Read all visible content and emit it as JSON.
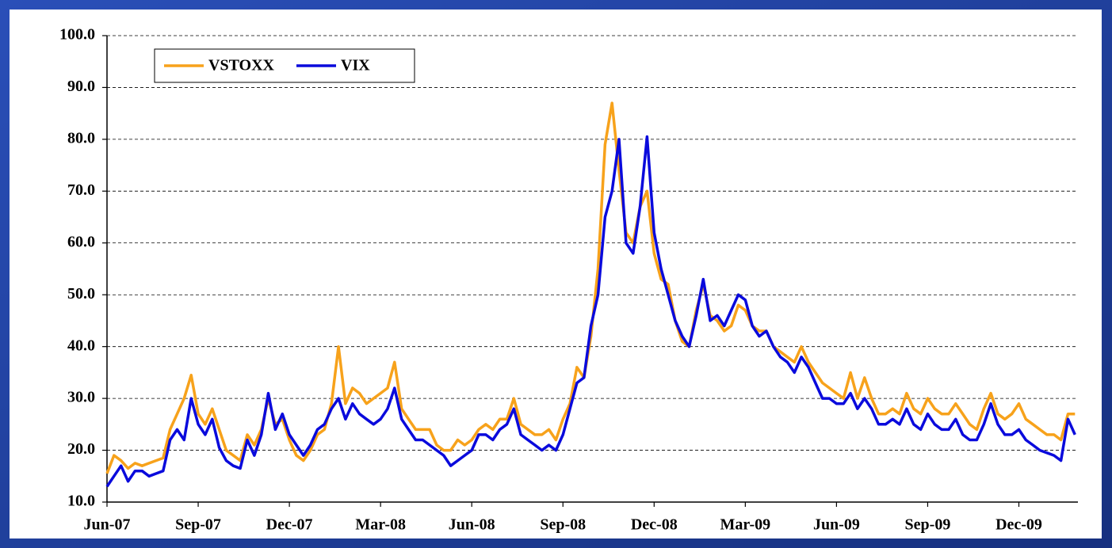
{
  "chart_data": {
    "type": "line",
    "categories": [
      "Jun-07",
      null,
      null,
      null,
      null,
      null,
      null,
      null,
      null,
      null,
      null,
      null,
      null,
      "Sep-07",
      null,
      null,
      null,
      null,
      null,
      null,
      null,
      null,
      null,
      null,
      null,
      null,
      "Dec-07",
      null,
      null,
      null,
      null,
      null,
      null,
      null,
      null,
      null,
      null,
      null,
      null,
      "Mar-08",
      null,
      null,
      null,
      null,
      null,
      null,
      null,
      null,
      null,
      null,
      null,
      null,
      "Jun-08",
      null,
      null,
      null,
      null,
      null,
      null,
      null,
      null,
      null,
      null,
      null,
      null,
      "Sep-08",
      null,
      null,
      null,
      null,
      null,
      null,
      null,
      null,
      null,
      null,
      null,
      null,
      "Dec-08",
      null,
      null,
      null,
      null,
      null,
      null,
      null,
      null,
      null,
      null,
      null,
      null,
      "Mar-09",
      null,
      null,
      null,
      null,
      null,
      null,
      null,
      null,
      null,
      null,
      null,
      null,
      "Jun-09",
      null,
      null,
      null,
      null,
      null,
      null,
      null,
      null,
      null,
      null,
      null,
      null,
      "Sep-09",
      null,
      null,
      null,
      null,
      null,
      null,
      null,
      null,
      null,
      null,
      null,
      null,
      "Dec-09",
      null,
      null,
      null,
      null,
      null,
      null,
      null,
      null
    ],
    "series": [
      {
        "name": "VSTOXX",
        "color": "#f7a21b",
        "values": [
          15.5,
          19,
          18,
          16.5,
          17.5,
          17,
          17.5,
          18,
          18.5,
          24,
          27,
          30,
          34.5,
          27,
          25,
          28,
          24,
          20,
          19,
          18,
          23,
          21,
          24,
          30,
          25,
          26,
          22,
          19,
          18,
          20,
          23,
          24,
          29,
          40,
          29,
          32,
          31,
          29,
          30,
          31,
          32,
          37,
          28,
          26,
          24,
          24,
          24,
          21,
          20,
          20,
          22,
          21,
          22,
          24,
          25,
          24,
          26,
          26,
          30,
          25,
          24,
          23,
          23,
          24,
          22,
          26,
          29,
          36,
          34,
          42,
          55,
          79,
          87,
          74,
          62,
          60,
          67,
          70,
          58,
          53,
          52,
          45,
          41,
          40,
          47,
          52,
          46,
          45,
          43,
          44,
          48,
          47,
          44,
          43,
          43,
          40,
          39,
          38,
          37,
          40,
          37,
          35,
          33,
          32,
          31,
          30,
          35,
          30,
          34,
          30,
          27,
          27,
          28,
          27,
          31,
          28,
          27,
          30,
          28,
          27,
          27,
          29,
          27,
          25,
          24,
          28,
          31,
          27,
          26,
          27,
          29,
          26,
          25,
          24,
          23,
          23,
          22,
          27,
          27
        ]
      },
      {
        "name": "VIX",
        "color": "#0a0adc",
        "values": [
          13,
          15,
          17,
          14,
          16,
          16,
          15,
          15.5,
          16,
          22,
          24,
          22,
          30,
          25,
          23,
          26,
          20.5,
          18,
          17,
          16.5,
          22,
          19,
          23,
          31,
          24,
          27,
          23,
          21,
          19,
          21,
          24,
          25,
          28,
          30,
          26,
          29,
          27,
          26,
          25,
          26,
          28,
          32,
          26,
          24,
          22,
          22,
          21,
          20,
          19,
          17,
          18,
          19,
          20,
          23,
          23,
          22,
          24,
          25,
          28,
          23,
          22,
          21,
          20,
          21,
          20,
          23,
          28,
          33,
          34,
          44,
          50,
          65,
          70,
          80,
          60,
          58,
          67,
          80.5,
          62,
          55,
          50,
          45,
          42,
          40,
          46,
          53,
          45,
          46,
          44,
          47,
          50,
          49,
          44,
          42,
          43,
          40,
          38,
          37,
          35,
          38,
          36,
          33,
          30,
          30,
          29,
          29,
          31,
          28,
          30,
          28,
          25,
          25,
          26,
          25,
          28,
          25,
          24,
          27,
          25,
          24,
          24,
          26,
          23,
          22,
          22,
          25,
          29,
          25,
          23,
          23,
          24,
          22,
          21,
          20,
          19.5,
          19,
          18,
          26,
          23
        ]
      }
    ],
    "ylim": [
      10,
      100
    ],
    "yticks": [
      {
        "value": 10,
        "label": "10.0"
      },
      {
        "value": 20,
        "label": "20.0"
      },
      {
        "value": 30,
        "label": "30.0"
      },
      {
        "value": 40,
        "label": "40.0"
      },
      {
        "value": 50,
        "label": "50.0"
      },
      {
        "value": 60,
        "label": "60.0"
      },
      {
        "value": 70,
        "label": "70.0"
      },
      {
        "value": 80,
        "label": "80.0"
      },
      {
        "value": 90,
        "label": "90.0"
      },
      {
        "value": 100,
        "label": "100.0"
      }
    ],
    "grid": true,
    "legend": "top-left"
  }
}
